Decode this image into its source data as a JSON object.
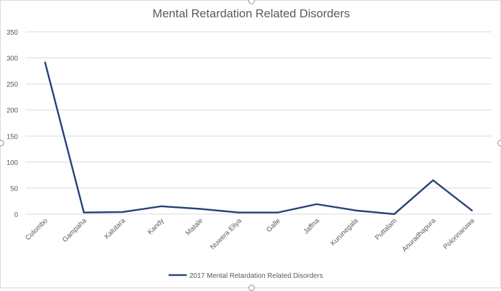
{
  "chart_data": {
    "type": "line",
    "title": "Mental Retardation Related Disorders",
    "xlabel": "",
    "ylabel": "",
    "categories": [
      "Colombo",
      "Gampaha",
      "Kalutara",
      "Kandy",
      "Matale",
      "Nuwera Eliya",
      "Galle",
      "Jaffna",
      "Kurunegala",
      "Puttalam",
      "Anuradhapura",
      "Polonnaruwa"
    ],
    "series": [
      {
        "name": "2017 Mental Retardation Related Disorders",
        "values": [
          291,
          3,
          4,
          15,
          10,
          3,
          3,
          19,
          7,
          0,
          65,
          7
        ]
      }
    ],
    "ylim": [
      0,
      350
    ],
    "yticks": [
      0,
      50,
      100,
      150,
      200,
      250,
      300,
      350
    ],
    "grid": true,
    "legend": "bottom-center",
    "color": "#264478"
  }
}
